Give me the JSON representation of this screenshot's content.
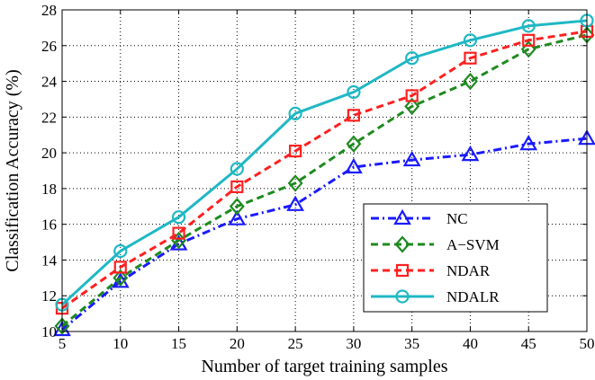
{
  "chart_data": {
    "type": "line",
    "xlabel": "Number of target training samples",
    "ylabel": "Classification Accuracy (%)",
    "x": [
      5,
      10,
      15,
      20,
      25,
      30,
      35,
      40,
      45,
      50
    ],
    "xlim": [
      5,
      50
    ],
    "ylim": [
      10,
      28
    ],
    "xticks": [
      "5",
      "10",
      "15",
      "20",
      "25",
      "30",
      "35",
      "40",
      "45",
      "50"
    ],
    "yticks": [
      "10",
      "12",
      "14",
      "16",
      "18",
      "20",
      "22",
      "24",
      "26",
      "28"
    ],
    "grid": true,
    "legend_position": "bottom-right",
    "series": [
      {
        "name": "NC",
        "color": "#1a1aff",
        "marker": "triangle",
        "dash": "dashdot",
        "values": [
          10.1,
          12.8,
          14.9,
          16.3,
          17.1,
          19.2,
          19.6,
          19.9,
          20.5,
          20.8
        ]
      },
      {
        "name": "A−SVM",
        "color": "#1f8a1f",
        "marker": "diamond",
        "dash": "dashed",
        "values": [
          10.3,
          13.0,
          15.1,
          17.0,
          18.3,
          20.5,
          22.6,
          24.0,
          25.8,
          26.6
        ]
      },
      {
        "name": "NDAR",
        "color": "#ff2020",
        "marker": "square",
        "dash": "dashed",
        "values": [
          11.3,
          13.6,
          15.5,
          18.1,
          20.1,
          22.1,
          23.2,
          25.3,
          26.3,
          26.8
        ]
      },
      {
        "name": "NDALR",
        "color": "#1fb8c4",
        "marker": "circle",
        "dash": "solid",
        "values": [
          11.5,
          14.5,
          16.4,
          19.1,
          22.2,
          23.4,
          25.3,
          26.3,
          27.1,
          27.4
        ]
      }
    ]
  }
}
